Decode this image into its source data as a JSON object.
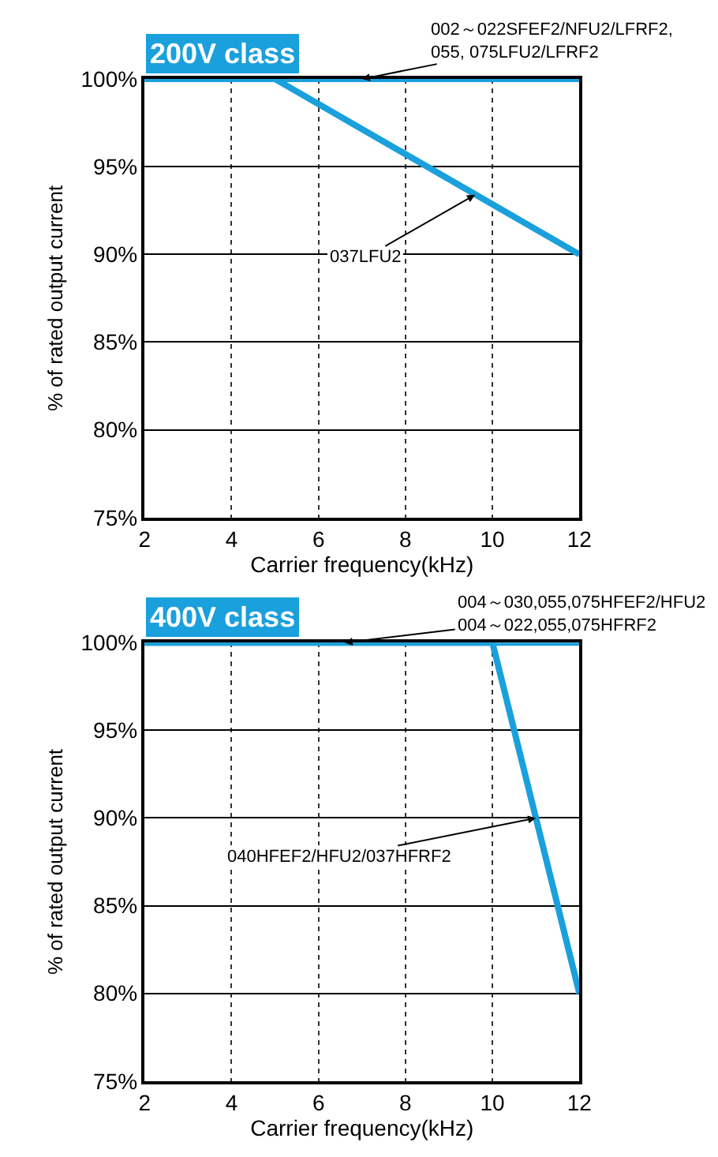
{
  "chart_data": [
    {
      "type": "line",
      "title": "200V class",
      "xlabel": "Carrier frequency(kHz)",
      "ylabel": "% of rated output current",
      "xlim": [
        2,
        12
      ],
      "xticks": [
        2,
        4,
        6,
        8,
        10,
        12
      ],
      "ylim": [
        75,
        100
      ],
      "yticks": [
        {
          "value": 75,
          "label": "75%"
        },
        {
          "value": 80,
          "label": "80%"
        },
        {
          "value": 85,
          "label": "85%"
        },
        {
          "value": 90,
          "label": "90%"
        },
        {
          "value": 95,
          "label": "95%"
        },
        {
          "value": 100,
          "label": "100%"
        }
      ],
      "grid": true,
      "series": [
        {
          "color": "#1aa0dc",
          "x": [
            2,
            12
          ],
          "values": [
            100,
            100
          ]
        },
        {
          "color": "#1aa0dc",
          "x": [
            2,
            5,
            12
          ],
          "values": [
            100,
            100,
            90
          ]
        }
      ],
      "annotations": [
        {
          "text": "002～022SFEF2/NFU2/LFRF2,\n055, 075LFU2/LFRF2",
          "x": 7,
          "y": 100
        },
        {
          "text": "037LFU2",
          "x": 9.6,
          "y": 93.4
        }
      ]
    },
    {
      "type": "line",
      "title": "400V class",
      "xlabel": "Carrier frequency(kHz)",
      "ylabel": "% of rated output current",
      "xlim": [
        2,
        12
      ],
      "xticks": [
        2,
        4,
        6,
        8,
        10,
        12
      ],
      "ylim": [
        75,
        100
      ],
      "yticks": [
        {
          "value": 75,
          "label": "75%"
        },
        {
          "value": 80,
          "label": "80%"
        },
        {
          "value": 85,
          "label": "85%"
        },
        {
          "value": 90,
          "label": "90%"
        },
        {
          "value": 95,
          "label": "95%"
        },
        {
          "value": 100,
          "label": "100%"
        }
      ],
      "grid": true,
      "series": [
        {
          "color": "#1aa0dc",
          "x": [
            2,
            12
          ],
          "values": [
            100,
            100
          ]
        },
        {
          "color": "#1aa0dc",
          "x": [
            2,
            10,
            12
          ],
          "values": [
            100,
            100,
            80
          ]
        }
      ],
      "annotations": [
        {
          "text": "004～030,055,075HFEF2/HFU2\n004～022,055,075HFRF2",
          "x": 6.6,
          "y": 100
        },
        {
          "text": "040HFEF2/HFU2/037HFRF2",
          "x": 11,
          "y": 90
        }
      ]
    }
  ]
}
